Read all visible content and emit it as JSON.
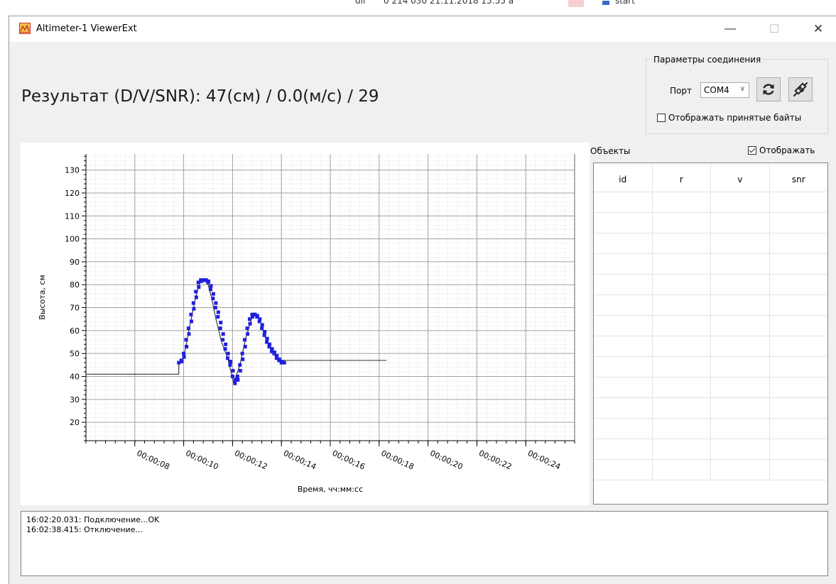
{
  "background": {
    "fragment_1": "dir",
    "fragment_2": "0 214 030 21.11.2018 15:55 a",
    "fragment_3": "start"
  },
  "window": {
    "title": "Altimeter-1 ViewerExt",
    "minimize_glyph": "—",
    "maximize_glyph": "☐",
    "close_glyph": "✕",
    "app_icon": "altimeter-app-icon"
  },
  "result": {
    "text": "Результат (D/V/SNR): 47(см) / 0.0(м/с) / 29"
  },
  "connection": {
    "group_title": "Параметры соединения",
    "port_label": "Порт",
    "port_value": "COM4",
    "refresh_icon": "refresh-icon",
    "connect_icon": "plug-icon",
    "show_bytes_label": "Отображать принятые байты",
    "show_bytes_checked": false
  },
  "objects": {
    "label": "Объекты",
    "show_label": "Отображать",
    "show_checked": true,
    "columns": [
      "id",
      "r",
      "v",
      "snr"
    ],
    "rows": 14
  },
  "log": {
    "lines": [
      "16:02:20.031: Подключение...OK",
      "16:02:38.415: Отключение..."
    ]
  },
  "colors": {
    "series_points": "#1f1fe0",
    "series_line": "#303030",
    "grid_major": "#a0a0a0",
    "grid_minor": "#dcdcdc"
  },
  "chart_data": {
    "type": "line",
    "xlabel": "Время, чч:мм:сс",
    "ylabel": "Высота, см",
    "x_unit": "seconds",
    "xlim": [
      6.0,
      26.0
    ],
    "ylim": [
      12,
      137
    ],
    "y_ticks": [
      20,
      30,
      40,
      50,
      60,
      70,
      80,
      90,
      100,
      110,
      120,
      130
    ],
    "x_tick_labels": [
      "00;00;08",
      "00;00;10",
      "00;00;12",
      "00;00;14",
      "00;00;16",
      "00;00;18",
      "00;00;20",
      "00;00;22",
      "00;00;24"
    ],
    "x_tick_values": [
      8,
      10,
      12,
      14,
      16,
      18,
      20,
      22,
      24
    ],
    "grid": true,
    "series": [
      {
        "style": "line",
        "x": [
          6.0,
          9.8,
          9.8,
          10.0,
          10.25,
          10.5,
          10.7,
          10.85,
          11.0,
          11.15,
          11.3,
          11.55,
          11.8,
          12.05,
          12.3,
          12.55,
          12.8,
          12.95,
          13.1,
          13.25,
          13.4,
          13.6,
          13.8,
          14.0,
          14.0,
          18.3
        ],
        "y": [
          41,
          41,
          45,
          48,
          62,
          75,
          82,
          82,
          80,
          74,
          66,
          55,
          48,
          37,
          45,
          57,
          66,
          67,
          65,
          60,
          55,
          51,
          48,
          46,
          47,
          47
        ]
      },
      {
        "style": "points",
        "x": [
          9.8,
          9.9,
          10.0,
          10.1,
          10.2,
          10.3,
          10.4,
          10.5,
          10.6,
          10.7,
          10.8,
          10.9,
          11.0,
          11.1,
          11.2,
          11.3,
          11.4,
          11.5,
          11.6,
          11.7,
          11.8,
          11.9,
          12.0,
          12.1,
          12.2,
          12.3,
          12.4,
          12.5,
          12.6,
          12.7,
          12.8,
          12.9,
          13.0,
          13.1,
          13.2,
          13.3,
          13.4,
          13.5,
          13.6,
          13.7,
          13.8,
          13.9,
          14.0
        ],
        "y": [
          46,
          47,
          50,
          56,
          61,
          67,
          72,
          77,
          81,
          82,
          82,
          82,
          81,
          78,
          74,
          70,
          66,
          61,
          56,
          52,
          48,
          45,
          40,
          37,
          40,
          45,
          50,
          56,
          61,
          65,
          67,
          67,
          66,
          64,
          61,
          58,
          55,
          53,
          51,
          50,
          48,
          47,
          46
        ]
      }
    ]
  }
}
